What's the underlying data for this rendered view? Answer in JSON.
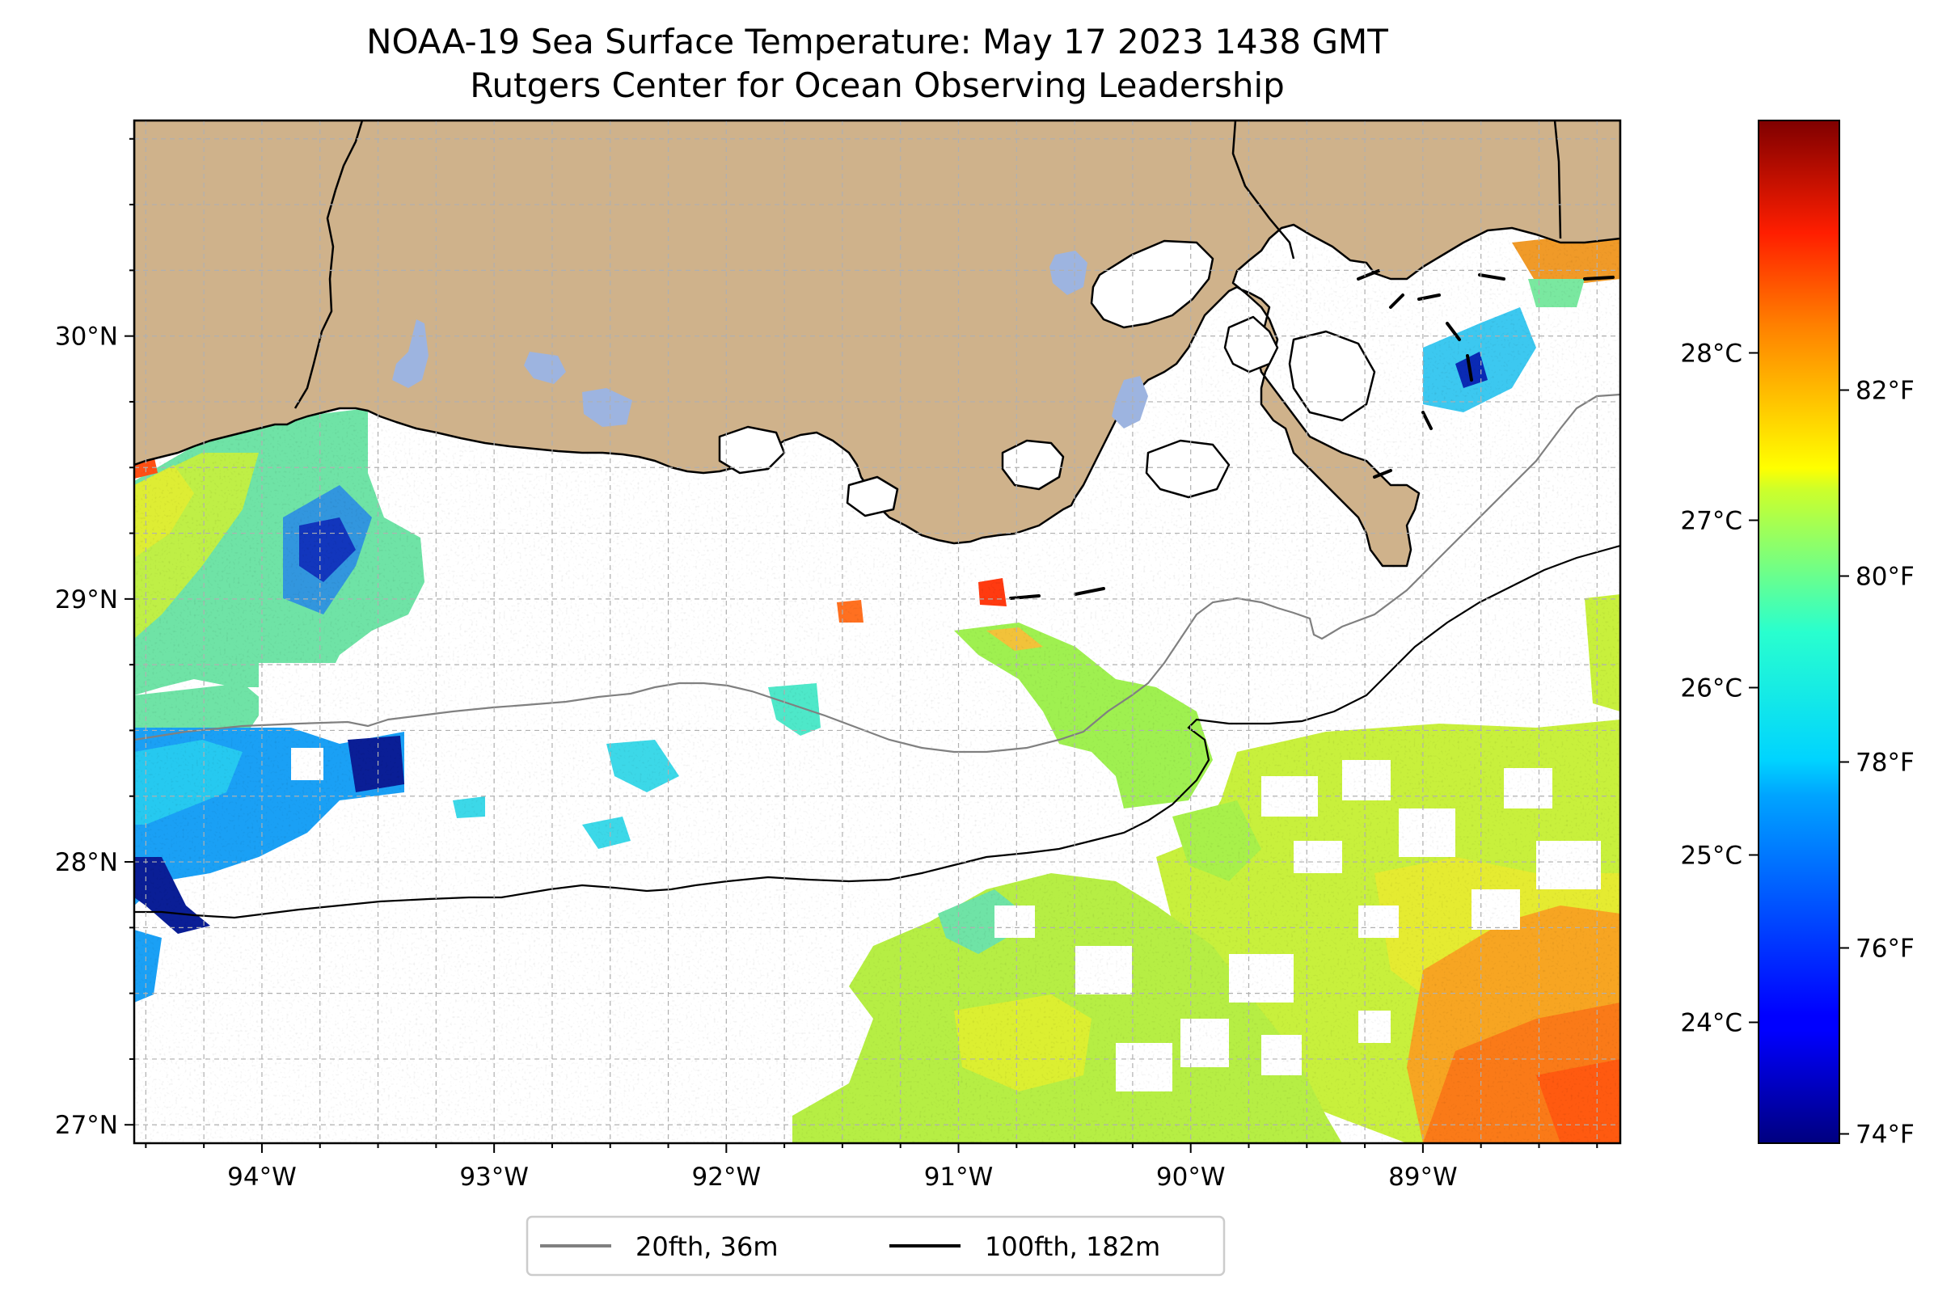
{
  "title_line1": "NOAA-19 Sea Surface Temperature: May 17 2023 1438 GMT",
  "title_line2": "Rutgers Center for Ocean Observing Leadership",
  "colors": {
    "land": "#cfb28b",
    "lake": "#9db4e0",
    "coast": "#000000",
    "isobath_20": "#808080",
    "isobath_100": "#000000",
    "grid": "#b0b0b0"
  },
  "map": {
    "extent_lon": [
      -94.55,
      -88.15
    ],
    "extent_lat": [
      26.93,
      30.82
    ],
    "lon_ticks": [
      {
        "value": -94,
        "label": "94°W"
      },
      {
        "value": -93,
        "label": "93°W"
      },
      {
        "value": -92,
        "label": "92°W"
      },
      {
        "value": -91,
        "label": "91°W"
      },
      {
        "value": -90,
        "label": "90°W"
      },
      {
        "value": -89,
        "label": "89°W"
      }
    ],
    "lat_ticks": [
      {
        "value": 30,
        "label": "30°N"
      },
      {
        "value": 29,
        "label": "29°N"
      },
      {
        "value": 28,
        "label": "28°N"
      },
      {
        "value": 27,
        "label": "27°N"
      }
    ],
    "minor_lon_step": 0.25,
    "minor_lat_step": 0.25,
    "grid": true
  },
  "legend": {
    "placement": "bottom-center",
    "entries": [
      {
        "label": "20fth, 36m",
        "color": "#808080"
      },
      {
        "label": "100fth, 182m",
        "color": "#000000"
      }
    ]
  },
  "colorbar": {
    "colormap": "jet",
    "range_f": [
      73.9,
      84.9
    ],
    "celsius_ticks": [
      {
        "value": 24,
        "label": "24°C"
      },
      {
        "value": 25,
        "label": "25°C"
      },
      {
        "value": 26,
        "label": "26°C"
      },
      {
        "value": 27,
        "label": "27°C"
      },
      {
        "value": 28,
        "label": "28°C"
      }
    ],
    "fahrenheit_ticks": [
      {
        "value": 74,
        "label": "74°F"
      },
      {
        "value": 76,
        "label": "76°F"
      },
      {
        "value": 78,
        "label": "78°F"
      },
      {
        "value": 80,
        "label": "80°F"
      },
      {
        "value": 82,
        "label": "82°F"
      }
    ]
  }
}
